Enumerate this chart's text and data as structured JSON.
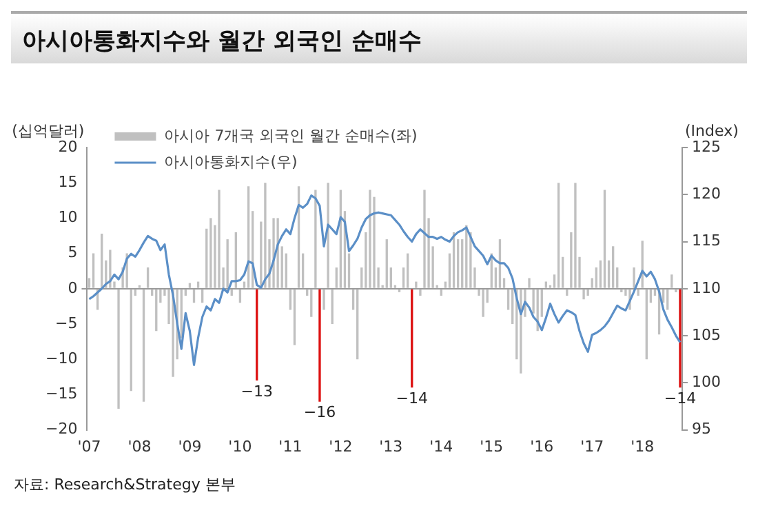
{
  "chart_data": {
    "type": "bar",
    "title": "아시아통화지수와 월간 외국인 순매수",
    "ylabel": "(십억달러)",
    "y2label": "(Index)",
    "annotations": [
      "자료: Research&Strategy 본부"
    ],
    "categories": [
      "'07",
      null,
      null,
      null,
      null,
      null,
      null,
      null,
      null,
      null,
      null,
      null,
      "'08",
      null,
      null,
      null,
      null,
      null,
      null,
      null,
      null,
      null,
      null,
      null,
      "'09",
      null,
      null,
      null,
      null,
      null,
      null,
      null,
      null,
      null,
      null,
      null,
      "'10",
      null,
      null,
      null,
      null,
      null,
      null,
      null,
      null,
      null,
      null,
      null,
      "'11",
      null,
      null,
      null,
      null,
      null,
      null,
      null,
      null,
      null,
      null,
      null,
      "'12",
      null,
      null,
      null,
      null,
      null,
      null,
      null,
      null,
      null,
      null,
      null,
      "'13",
      null,
      null,
      null,
      null,
      null,
      null,
      null,
      null,
      null,
      null,
      null,
      "'14",
      null,
      null,
      null,
      null,
      null,
      null,
      null,
      null,
      null,
      null,
      null,
      "'15",
      null,
      null,
      null,
      null,
      null,
      null,
      null,
      null,
      null,
      null,
      null,
      "'16",
      null,
      null,
      null,
      null,
      null,
      null,
      null,
      null,
      null,
      null,
      null,
      "'17",
      null,
      null,
      null,
      null,
      null,
      null,
      null,
      null,
      null,
      null,
      null,
      "'18",
      null,
      null,
      null,
      null,
      null,
      null,
      null,
      null,
      null
    ],
    "series": [
      {
        "name": "아시아 7개국 외국인 월간 순매수(좌)",
        "color": "#c0c0c0",
        "colors": [
          "#c0c0c0",
          "#c0c0c0",
          "#c0c0c0",
          "#c0c0c0",
          "#c0c0c0",
          "#c0c0c0",
          "#c0c0c0",
          "#c0c0c0",
          "#c0c0c0",
          "#c0c0c0",
          "#c0c0c0",
          "#c0c0c0",
          "#c0c0c0",
          "#c0c0c0",
          "#c0c0c0",
          "#c0c0c0",
          "#c0c0c0",
          "#c0c0c0",
          "#c0c0c0",
          "#c0c0c0",
          "#c0c0c0",
          "#c0c0c0",
          "#c0c0c0",
          "#c0c0c0",
          "#c0c0c0",
          "#c0c0c0",
          "#c0c0c0",
          "#c0c0c0",
          "#c0c0c0",
          "#c0c0c0",
          "#c0c0c0",
          "#c0c0c0",
          "#c0c0c0",
          "#c0c0c0",
          "#c0c0c0",
          "#c0c0c0",
          "#c0c0c0",
          "#c0c0c0",
          "#c0c0c0",
          "#c0c0c0",
          "#dd1111",
          "#c0c0c0",
          "#c0c0c0",
          "#c0c0c0",
          "#c0c0c0",
          "#c0c0c0",
          "#c0c0c0",
          "#c0c0c0",
          "#c0c0c0",
          "#c0c0c0",
          "#c0c0c0",
          "#c0c0c0",
          "#c0c0c0",
          "#c0c0c0",
          "#c0c0c0",
          "#dd1111",
          "#c0c0c0",
          "#c0c0c0",
          "#c0c0c0",
          "#c0c0c0",
          "#c0c0c0",
          "#c0c0c0",
          "#c0c0c0",
          "#c0c0c0",
          "#c0c0c0",
          "#c0c0c0",
          "#c0c0c0",
          "#c0c0c0",
          "#c0c0c0",
          "#c0c0c0",
          "#c0c0c0",
          "#c0c0c0",
          "#c0c0c0",
          "#c0c0c0",
          "#c0c0c0",
          "#c0c0c0",
          "#c0c0c0",
          "#dd1111",
          "#c0c0c0",
          "#c0c0c0",
          "#c0c0c0",
          "#c0c0c0",
          "#c0c0c0",
          "#c0c0c0",
          "#c0c0c0",
          "#c0c0c0",
          "#c0c0c0",
          "#c0c0c0",
          "#c0c0c0",
          "#c0c0c0",
          "#c0c0c0",
          "#c0c0c0",
          "#c0c0c0",
          "#c0c0c0",
          "#c0c0c0",
          "#c0c0c0",
          "#c0c0c0",
          "#c0c0c0",
          "#c0c0c0",
          "#c0c0c0",
          "#c0c0c0",
          "#c0c0c0",
          "#c0c0c0",
          "#c0c0c0",
          "#c0c0c0",
          "#c0c0c0",
          "#c0c0c0",
          "#c0c0c0",
          "#c0c0c0",
          "#c0c0c0",
          "#c0c0c0",
          "#c0c0c0",
          "#c0c0c0",
          "#c0c0c0",
          "#c0c0c0",
          "#c0c0c0",
          "#c0c0c0",
          "#c0c0c0",
          "#c0c0c0",
          "#c0c0c0",
          "#c0c0c0",
          "#c0c0c0",
          "#c0c0c0",
          "#c0c0c0",
          "#c0c0c0",
          "#c0c0c0",
          "#c0c0c0",
          "#c0c0c0",
          "#c0c0c0",
          "#c0c0c0",
          "#c0c0c0",
          "#c0c0c0",
          "#c0c0c0",
          "#c0c0c0",
          "#c0c0c0",
          "#c0c0c0",
          "#c0c0c0",
          "#c0c0c0",
          "#c0c0c0",
          "#c0c0c0",
          "#c0c0c0",
          "#dd1111"
        ],
        "values": [
          1.5,
          5,
          -3,
          7.8,
          4,
          5.5,
          1,
          -17,
          3,
          5,
          -14.5,
          -1,
          0.5,
          -16,
          3,
          -1,
          -6,
          -2,
          -1,
          -5,
          -12.5,
          -10,
          -7,
          -1,
          0.8,
          -2,
          1,
          -2,
          8.5,
          10,
          9,
          14,
          3,
          7,
          -1,
          8,
          -2,
          1,
          14.5,
          11,
          -13,
          9.5,
          15,
          7,
          10,
          10,
          6,
          5,
          -3,
          -8,
          14.5,
          5,
          -1,
          -4,
          14,
          -16,
          -3,
          15,
          -5,
          3,
          14,
          11,
          5,
          -3,
          -10,
          3,
          8,
          14,
          13,
          3,
          0.5,
          7,
          3,
          0.5,
          -0.5,
          3,
          5,
          -14,
          1,
          -1,
          14,
          10,
          6,
          0.5,
          -1,
          1,
          5,
          8,
          7,
          7,
          9,
          8,
          3,
          -1,
          -4,
          -2,
          5,
          3,
          7,
          1.5,
          -3,
          -5,
          -10,
          -12,
          -4,
          1.5,
          -3.5,
          -6,
          -4,
          1,
          0.5,
          2,
          15,
          4.5,
          -1,
          8,
          15,
          4.5,
          -1.5,
          -1,
          1.5,
          3,
          4,
          14,
          4,
          6,
          3,
          -0.5,
          -1,
          -3,
          3,
          -1,
          6.8,
          -10,
          -2,
          -1,
          -6.5,
          -2,
          -3,
          2,
          -0.5,
          -14
        ],
        "value_labels": [
          null,
          null,
          null,
          null,
          null,
          null,
          null,
          null,
          null,
          null,
          null,
          null,
          null,
          null,
          null,
          null,
          null,
          null,
          null,
          null,
          null,
          null,
          null,
          null,
          null,
          null,
          null,
          null,
          null,
          null,
          null,
          null,
          null,
          null,
          null,
          null,
          null,
          null,
          null,
          null,
          "−13",
          null,
          null,
          null,
          null,
          null,
          null,
          null,
          null,
          null,
          null,
          null,
          null,
          null,
          null,
          "−16",
          null,
          null,
          null,
          null,
          null,
          null,
          null,
          null,
          null,
          null,
          null,
          null,
          null,
          null,
          null,
          null,
          null,
          null,
          null,
          null,
          null,
          "−14",
          null,
          null,
          null,
          null,
          null,
          null,
          null,
          null,
          null,
          null,
          null,
          null,
          null,
          null,
          null,
          null,
          null,
          null,
          null,
          null,
          null,
          null,
          null,
          null,
          null,
          null,
          null,
          null,
          null,
          null,
          null,
          null,
          null,
          null,
          null,
          null,
          null,
          null,
          null,
          null,
          null,
          null,
          null,
          null,
          null,
          null,
          null,
          null,
          null,
          null,
          null,
          null,
          null,
          null,
          null,
          null,
          null,
          null,
          null,
          null,
          null,
          null,
          null,
          "−14"
        ]
      },
      {
        "name": "아시아통화지수(우)",
        "type": "line",
        "axis": "y2",
        "color": "#5b8fc7",
        "values": [
          108.9,
          109.2,
          109.6,
          110,
          110.5,
          110.8,
          111.5,
          111,
          111.8,
          113.2,
          113.7,
          113.4,
          114.1,
          114.9,
          115.6,
          115.3,
          115.1,
          114.1,
          114.7,
          111.5,
          109.3,
          106.3,
          103.6,
          107.4,
          105.5,
          101.9,
          104.8,
          107,
          108.1,
          107.7,
          108.9,
          108.5,
          110,
          109.6,
          110.8,
          110.8,
          110.9,
          111.5,
          112.9,
          112.7,
          110.4,
          110.1,
          111,
          111.6,
          113,
          114.7,
          115.6,
          116.3,
          115.8,
          117.5,
          118.9,
          118.6,
          119,
          119.9,
          119.6,
          118.8,
          114.5,
          116.8,
          116.3,
          115.8,
          117.6,
          117.1,
          114,
          114.6,
          115.3,
          116.5,
          117.4,
          117.8,
          118,
          118.1,
          118,
          117.9,
          117.8,
          117.3,
          116.8,
          116.1,
          115.5,
          115,
          115.8,
          116.3,
          115.9,
          115.5,
          115.5,
          115.3,
          115.5,
          115.2,
          115,
          115.6,
          116,
          116.2,
          116.5,
          115.5,
          114.5,
          114,
          113.5,
          112.6,
          113.5,
          113,
          112.7,
          112.7,
          112.2,
          111.1,
          109,
          107.3,
          108.6,
          108,
          107,
          106.5,
          105.6,
          106.9,
          108.4,
          107.3,
          106.4,
          107.1,
          107.7,
          107.5,
          107.2,
          105.5,
          104.2,
          103.3,
          105.1,
          105.3,
          105.6,
          106,
          106.6,
          107.4,
          108.2,
          107.9,
          107.7,
          108.7,
          109.7,
          110.8,
          111.9,
          111.3,
          111.8,
          111,
          109.7,
          107.8,
          106.7,
          105.9,
          105,
          104.3
        ]
      }
    ],
    "ylim": [
      -20,
      20
    ],
    "yticks": [
      -20,
      -15,
      -10,
      -5,
      0,
      5,
      10,
      15,
      20
    ],
    "y2lim": [
      95,
      125
    ],
    "y2ticks": [
      95,
      100,
      105,
      110,
      115,
      120,
      125
    ],
    "legend": "top left"
  }
}
